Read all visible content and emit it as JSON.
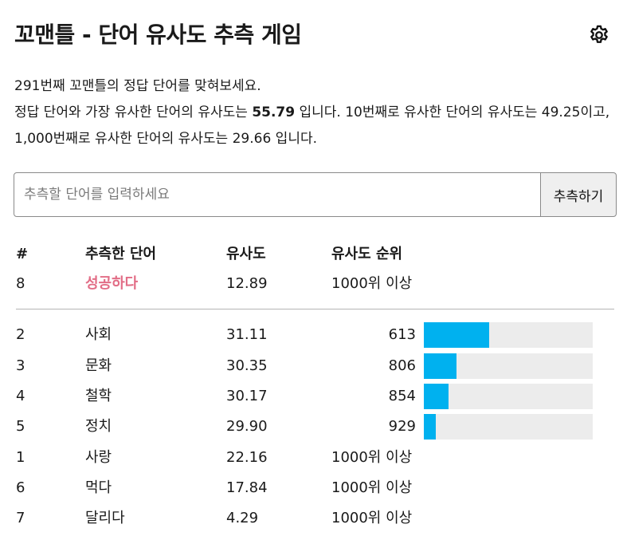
{
  "header": {
    "title": "꼬맨틀 - 단어 유사도 추측 게임",
    "settings_icon": "gear-icon"
  },
  "intro": {
    "line1": "291번째 꼬맨틀의 정답 단어를 맞혀보세요.",
    "line2_pre": "정답 단어와 가장 유사한 단어의 유사도는 ",
    "top_similarity": "55.79",
    "line2_post": " 입니다. 10번째로 유사한 단어의 유사도는 49.25이고, 1,000번째로 유사한 단어의 유사도는 29.66 입니다."
  },
  "guess_form": {
    "placeholder": "추측할 단어를 입력하세요",
    "value": "",
    "submit_label": "추측하기"
  },
  "table": {
    "headers": {
      "num": "#",
      "word": "추측한 단어",
      "similarity": "유사도",
      "rank": "유사도 순위"
    },
    "latest": {
      "num": "8",
      "word": "성공하다",
      "similarity": "12.89",
      "rank": "1000위 이상"
    },
    "rows": [
      {
        "num": "2",
        "word": "사회",
        "similarity": "31.11",
        "rank": "613",
        "bar_fraction": 0.387
      },
      {
        "num": "3",
        "word": "문화",
        "similarity": "30.35",
        "rank": "806",
        "bar_fraction": 0.194
      },
      {
        "num": "4",
        "word": "철학",
        "similarity": "30.17",
        "rank": "854",
        "bar_fraction": 0.146
      },
      {
        "num": "5",
        "word": "정치",
        "similarity": "29.90",
        "rank": "929",
        "bar_fraction": 0.071
      },
      {
        "num": "1",
        "word": "사랑",
        "similarity": "22.16",
        "rank": "1000위 이상"
      },
      {
        "num": "6",
        "word": "먹다",
        "similarity": "17.84",
        "rank": "1000위 이상"
      },
      {
        "num": "7",
        "word": "달리다",
        "similarity": "4.29",
        "rank": "1000위 이상"
      }
    ]
  },
  "colors": {
    "latest_word": "#e26d86",
    "bar_fill": "#00b1ef",
    "bar_track": "#ececec"
  }
}
